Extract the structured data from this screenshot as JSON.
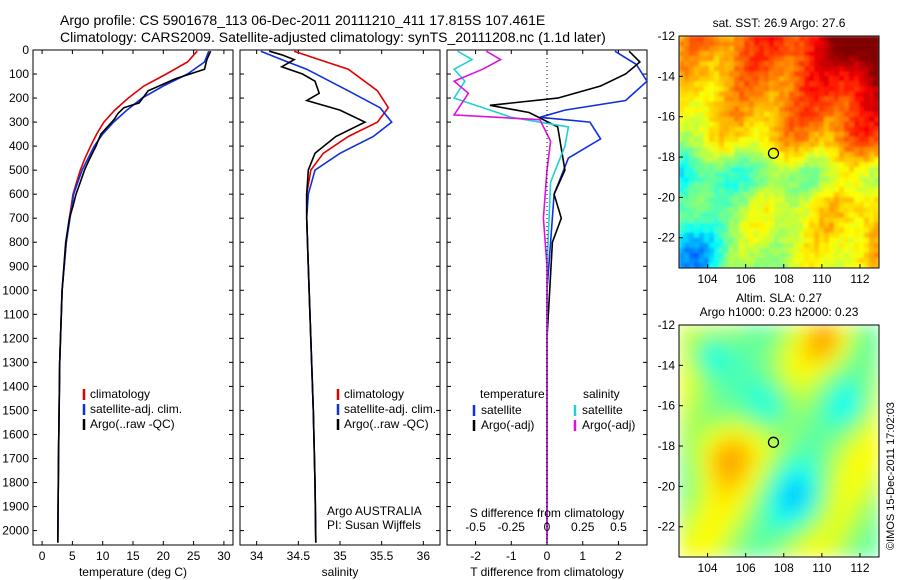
{
  "header": {
    "line1": "Argo profile: CS 5901678_113 06-Dec-2011 20111210_411 17.815S 107.461E",
    "line2": "Climatology: CARS2009. Satellite-adjusted climatology: synTS_20111208.nc (1.1d later)"
  },
  "colors": {
    "climatology": "#e00000",
    "satellite": "#1030e0",
    "argo": "#000000",
    "salinity_satellite": "#20d0d8",
    "salinity_argo": "#e010e0"
  },
  "chart_data": [
    {
      "id": "temperature",
      "type": "line",
      "xlabel": "temperature (deg C)",
      "ylabel": "",
      "xlim": [
        -1.5,
        31.5
      ],
      "ylim": [
        2060,
        0
      ],
      "xticks": [
        0,
        5,
        10,
        15,
        20,
        25,
        30
      ],
      "yticks": [
        0,
        100,
        200,
        300,
        400,
        500,
        600,
        700,
        800,
        900,
        1000,
        1100,
        1200,
        1300,
        1400,
        1500,
        1600,
        1700,
        1800,
        1900,
        2000
      ],
      "legend": [
        "climatology",
        "satellite-adj. clim.",
        "Argo(..raw -QC)"
      ],
      "series": [
        {
          "name": "climatology",
          "color": "#e00000",
          "x": [
            25.6,
            24.0,
            20.5,
            16.8,
            14.2,
            12.0,
            10.2,
            9.0,
            8.0,
            7.1,
            6.3,
            5.7,
            5.1,
            4.5,
            4.0,
            3.3,
            2.9,
            2.7,
            2.6
          ],
          "y": [
            5,
            50,
            100,
            150,
            200,
            250,
            300,
            350,
            400,
            450,
            500,
            550,
            600,
            700,
            800,
            1000,
            1300,
            1700,
            2050
          ]
        },
        {
          "name": "satellite-adj. clim.",
          "color": "#1030e0",
          "x": [
            27.5,
            26.8,
            24.0,
            20.0,
            16.5,
            14.0,
            11.8,
            10.0,
            8.6,
            7.6,
            6.6,
            5.9,
            5.2,
            4.6,
            4.0,
            3.3,
            2.9,
            2.7,
            2.6
          ],
          "y": [
            5,
            50,
            100,
            150,
            200,
            250,
            300,
            350,
            400,
            450,
            500,
            550,
            600,
            700,
            800,
            1000,
            1300,
            1700,
            2050
          ]
        },
        {
          "name": "Argo(..raw -QC)",
          "color": "#000000",
          "x": [
            27.8,
            27.2,
            26.8,
            22.0,
            17.5,
            16.0,
            13.5,
            12.5,
            12.0,
            11.5,
            9.7,
            8.9,
            7.9,
            7.0,
            6.3,
            5.6,
            5.1,
            4.5,
            3.9,
            3.3,
            2.9,
            2.7,
            2.6
          ],
          "y": [
            5,
            40,
            80,
            120,
            170,
            220,
            240,
            265,
            285,
            300,
            350,
            400,
            450,
            500,
            550,
            600,
            650,
            700,
            800,
            1000,
            1300,
            1700,
            2050
          ]
        }
      ]
    },
    {
      "id": "salinity",
      "type": "line",
      "xlabel": "salinity",
      "ylabel": "",
      "xlim": [
        33.8,
        36.2
      ],
      "ylim": [
        2060,
        0
      ],
      "xticks": [
        34,
        34.5,
        35,
        35.5,
        36
      ],
      "legend": [
        "climatology",
        "satellite-adj. clim.",
        "Argo(..raw -QC)"
      ],
      "annotation": [
        "Argo AUSTRALIA",
        "PI: Susan Wijffels"
      ],
      "series": [
        {
          "name": "climatology",
          "color": "#e00000",
          "x": [
            34.45,
            34.75,
            35.1,
            35.45,
            35.58,
            35.45,
            35.1,
            34.8,
            34.65,
            34.6,
            34.6,
            34.62,
            34.65,
            34.68,
            34.7,
            34.71
          ],
          "y": [
            5,
            40,
            80,
            170,
            240,
            300,
            360,
            430,
            500,
            600,
            700,
            900,
            1200,
            1500,
            1800,
            2050
          ]
        },
        {
          "name": "satellite-adj. clim.",
          "color": "#1030e0",
          "x": [
            34.05,
            34.3,
            34.6,
            35.1,
            35.48,
            35.62,
            35.4,
            35.0,
            34.7,
            34.62,
            34.6,
            34.62,
            34.65,
            34.68,
            34.7,
            34.71
          ],
          "y": [
            5,
            40,
            80,
            170,
            240,
            300,
            360,
            430,
            500,
            600,
            700,
            900,
            1200,
            1500,
            1800,
            2050
          ]
        },
        {
          "name": "Argo(..raw -QC)",
          "color": "#000000",
          "x": [
            34.15,
            34.3,
            34.45,
            34.3,
            34.55,
            34.7,
            34.75,
            34.6,
            35.0,
            35.3,
            34.95,
            34.7,
            34.62,
            34.6,
            34.6,
            34.62,
            34.65,
            34.68,
            34.7,
            34.71
          ],
          "y": [
            5,
            20,
            40,
            70,
            100,
            130,
            180,
            210,
            250,
            300,
            360,
            430,
            500,
            600,
            700,
            900,
            1200,
            1500,
            1800,
            2050
          ]
        }
      ]
    },
    {
      "id": "difference",
      "type": "line",
      "xlabel": "T difference from climatology",
      "x2label": "S difference from climatology",
      "xlim": [
        -2.8,
        2.8
      ],
      "ylim": [
        2060,
        0
      ],
      "xticks": [
        -2,
        -1,
        0,
        1,
        2
      ],
      "x2ticks": [
        -0.5,
        -0.25,
        0,
        0.25,
        0.5
      ],
      "legend_temperature": [
        "temperature",
        "satellite",
        "Argo(-adj)"
      ],
      "legend_salinity": [
        "salinity",
        "satellite",
        "Argo(-adj)"
      ],
      "series": [
        {
          "name": "temperature satellite",
          "color": "#1030e0",
          "x": [
            1.9,
            2.5,
            2.8,
            2.2,
            0.5,
            -0.2,
            1.2,
            1.5,
            0.6,
            0.2,
            0.1,
            0.0,
            0.0,
            0.0
          ],
          "y": [
            5,
            60,
            130,
            210,
            250,
            280,
            300,
            370,
            450,
            600,
            800,
            1000,
            1500,
            2050
          ]
        },
        {
          "name": "temperature Argo(-adj)",
          "color": "#000000",
          "x": [
            2.3,
            2.6,
            2.2,
            1.5,
            0.3,
            -1.6,
            -0.5,
            0.3,
            0.5,
            0.2,
            0.4,
            0.15,
            0.0,
            0.0
          ],
          "y": [
            5,
            50,
            100,
            150,
            200,
            230,
            260,
            320,
            500,
            600,
            700,
            800,
            1200,
            2050
          ]
        },
        {
          "name": "salinity satellite",
          "color": "#20d0d8",
          "x": [
            -2.5,
            -2.1,
            -2.6,
            -2.3,
            -2.6,
            -1.0,
            0.6,
            0.5,
            0.1,
            0.0,
            0.0
          ],
          "y": [
            5,
            40,
            80,
            130,
            200,
            280,
            320,
            400,
            550,
            900,
            2050
          ]
        },
        {
          "name": "salinity Argo(-adj)",
          "color": "#e010e0",
          "x": [
            -1.7,
            -1.3,
            -1.8,
            -2.6,
            -2.2,
            -2.6,
            -0.2,
            0.1,
            0.0,
            -0.1,
            0.0,
            0.0
          ],
          "y": [
            5,
            40,
            80,
            130,
            180,
            270,
            290,
            380,
            500,
            700,
            900,
            2050
          ]
        }
      ]
    },
    {
      "id": "sst-map",
      "type": "heatmap",
      "title": "sat. SST: 26.9 Argo: 27.6",
      "xticks": [
        104,
        106,
        108,
        110,
        112
      ],
      "yticks": [
        -12,
        -14,
        -16,
        -18,
        -20,
        -22
      ],
      "xlim": [
        102.5,
        113.0
      ],
      "ylim": [
        -23.5,
        -12.0
      ],
      "marker": {
        "lon": 107.461,
        "lat": -17.815
      }
    },
    {
      "id": "sla-map",
      "type": "heatmap",
      "title1": "Altim. SLA: 0.27",
      "title2": "Argo h1000: 0.23 h2000: 0.23",
      "xticks": [
        104,
        106,
        108,
        110,
        112
      ],
      "yticks": [
        -12,
        -14,
        -16,
        -18,
        -20,
        -22
      ],
      "xlim": [
        102.5,
        113.0
      ],
      "ylim": [
        -23.5,
        -12.0
      ],
      "marker": {
        "lon": 107.461,
        "lat": -17.815
      }
    }
  ],
  "footer": {
    "credit": "©IMOS 15-Dec-2011 17:02:03"
  }
}
